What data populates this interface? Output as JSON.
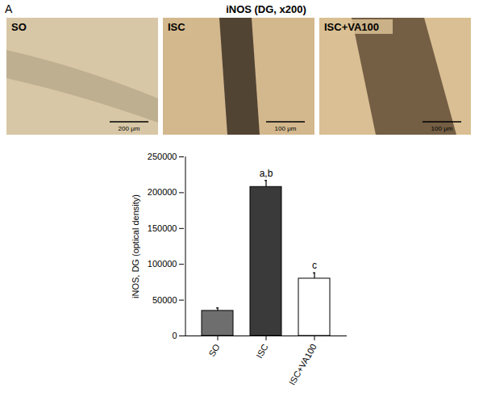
{
  "panel": {
    "letter": "A",
    "title": "iNOS (DG, x200)",
    "images": [
      {
        "label": "SO",
        "scale_bar": "200 μm"
      },
      {
        "label": "ISC",
        "scale_bar": "100 μm"
      },
      {
        "label": "ISC+VA100",
        "scale_bar": "100 μm"
      }
    ]
  },
  "chart_data": {
    "type": "bar",
    "y_label": "iNOS, DG (optical density)",
    "categories": [
      "SO",
      "ISC",
      "ISC+VA100"
    ],
    "values": [
      35000,
      208000,
      80000
    ],
    "errors": [
      4000,
      9000,
      8000
    ],
    "colors": [
      "#6e6e6e",
      "#3a3a3a",
      "#ffffff"
    ],
    "ylim": [
      0,
      250000
    ],
    "yticks": [
      0,
      50000,
      100000,
      150000,
      200000,
      250000
    ],
    "annotations": [
      {
        "category": "ISC",
        "text": "a,b"
      },
      {
        "category": "ISC+VA100",
        "text": "c"
      }
    ]
  }
}
